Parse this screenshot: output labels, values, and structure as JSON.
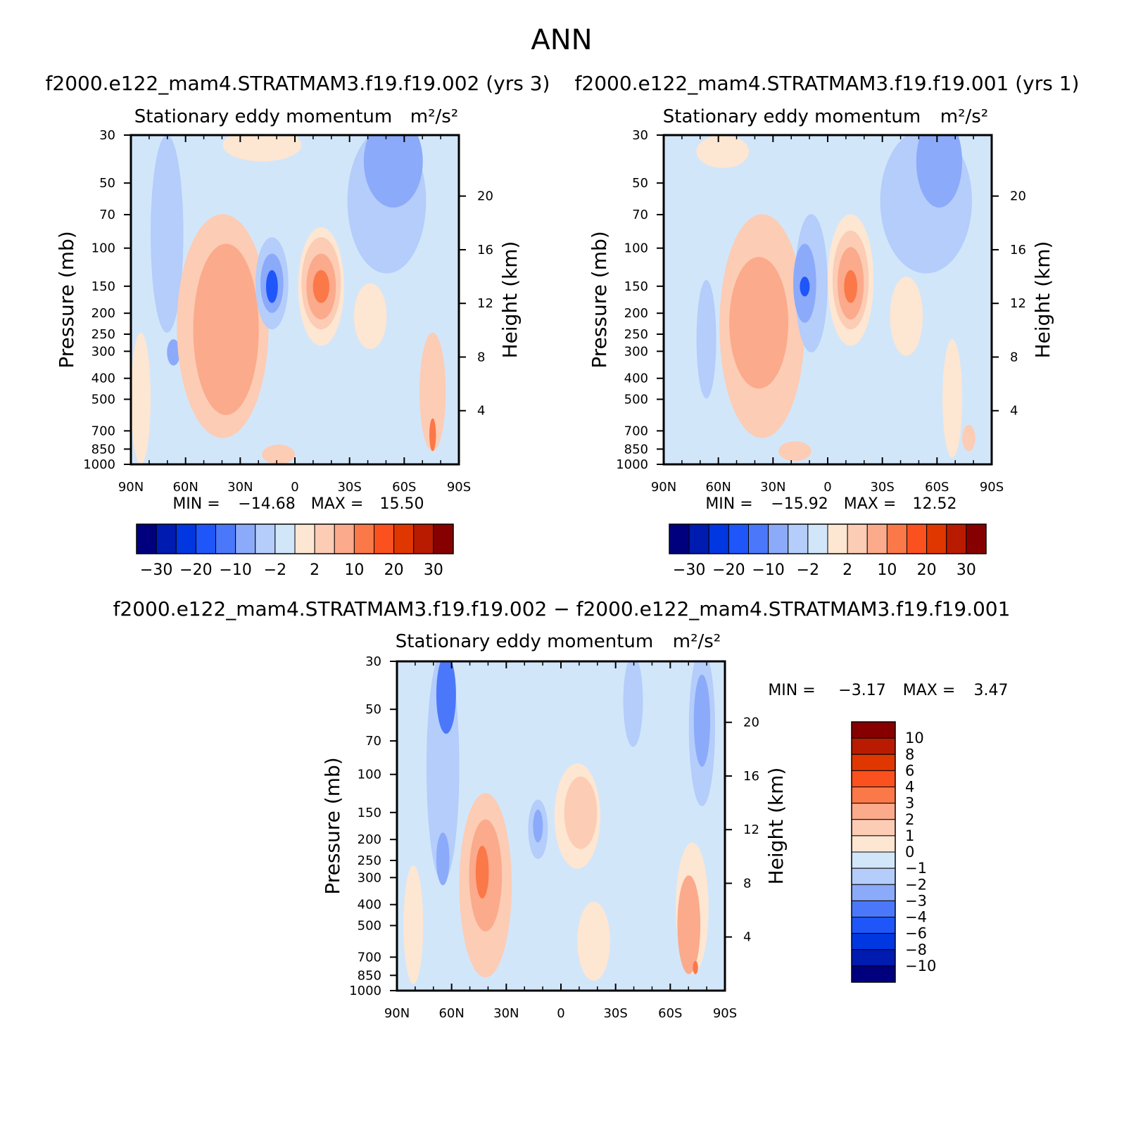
{
  "title": "ANN",
  "colors": {
    "main_scale": [
      "#00007f",
      "#001bb0",
      "#0037e0",
      "#1e56fa",
      "#4b78fa",
      "#8caafa",
      "#b4cdfa",
      "#d2e6fa",
      "#fde6d2",
      "#fcccb4",
      "#fbaa8c",
      "#fb7848",
      "#fb511e",
      "#e03700",
      "#b81b00",
      "#870000"
    ],
    "diff_scale": [
      "#00007f",
      "#001bb0",
      "#0037e0",
      "#1e56fa",
      "#4b78fa",
      "#8caafa",
      "#b4cdfa",
      "#d2e6fa",
      "#fde6d2",
      "#fcccb4",
      "#fbaa8c",
      "#fb7848",
      "#fb511e",
      "#e03700",
      "#b81b00",
      "#870000"
    ]
  },
  "chart_data": [
    {
      "type": "heatmap",
      "case": "f2000.e122_mam4.STRATMAM3.f19.f19.002 (yrs 3)",
      "title": "Stationary eddy momentum",
      "units": "m²/s²",
      "ylabel": "Pressure (mb)",
      "y2label": "Height (km)",
      "x_ticks": [
        "90N",
        "60N",
        "30N",
        "0",
        "30S",
        "60S",
        "90S"
      ],
      "y_ticks": [
        "30",
        "50",
        "70",
        "100",
        "150",
        "200",
        "250",
        "300",
        "400",
        "500",
        "700",
        "850",
        "1000"
      ],
      "y2_ticks": [
        "20",
        "16",
        "12",
        "8",
        "4"
      ],
      "min_label": "MIN =",
      "min": "−14.68",
      "max_label": "MAX =",
      "max": "15.50",
      "colorbar_labels": [
        "−30",
        "−20",
        "−10",
        "−2",
        "2",
        "10",
        "20",
        "30"
      ]
    },
    {
      "type": "heatmap",
      "case": "f2000.e122_mam4.STRATMAM3.f19.f19.001 (yrs 1)",
      "title": "Stationary eddy momentum",
      "units": "m²/s²",
      "ylabel": "Pressure (mb)",
      "y2label": "Height (km)",
      "x_ticks": [
        "90N",
        "60N",
        "30N",
        "0",
        "30S",
        "60S",
        "90S"
      ],
      "y_ticks": [
        "30",
        "50",
        "70",
        "100",
        "150",
        "200",
        "250",
        "300",
        "400",
        "500",
        "700",
        "850",
        "1000"
      ],
      "y2_ticks": [
        "20",
        "16",
        "12",
        "8",
        "4"
      ],
      "min_label": "MIN =",
      "min": "−15.92",
      "max_label": "MAX =",
      "max": "12.52",
      "colorbar_labels": [
        "−30",
        "−20",
        "−10",
        "−2",
        "2",
        "10",
        "20",
        "30"
      ]
    },
    {
      "type": "heatmap",
      "case": "f2000.e122_mam4.STRATMAM3.f19.f19.002 − f2000.e122_mam4.STRATMAM3.f19.f19.001",
      "title": "Stationary eddy momentum",
      "units": "m²/s²",
      "ylabel": "Pressure (mb)",
      "y2label": "Height (km)",
      "x_ticks": [
        "90N",
        "60N",
        "30N",
        "0",
        "30S",
        "60S",
        "90S"
      ],
      "y_ticks": [
        "30",
        "50",
        "70",
        "100",
        "150",
        "200",
        "250",
        "300",
        "400",
        "500",
        "700",
        "850",
        "1000"
      ],
      "y2_ticks": [
        "20",
        "16",
        "12",
        "8",
        "4"
      ],
      "min_label": "MIN =",
      "min": "−3.17",
      "max_label": "MAX =",
      "max": "3.47",
      "colorbar_labels": [
        "10",
        "8",
        "6",
        "4",
        "3",
        "2",
        "1",
        "0",
        "−1",
        "−2",
        "−3",
        "−4",
        "−6",
        "−8",
        "−10"
      ]
    }
  ]
}
